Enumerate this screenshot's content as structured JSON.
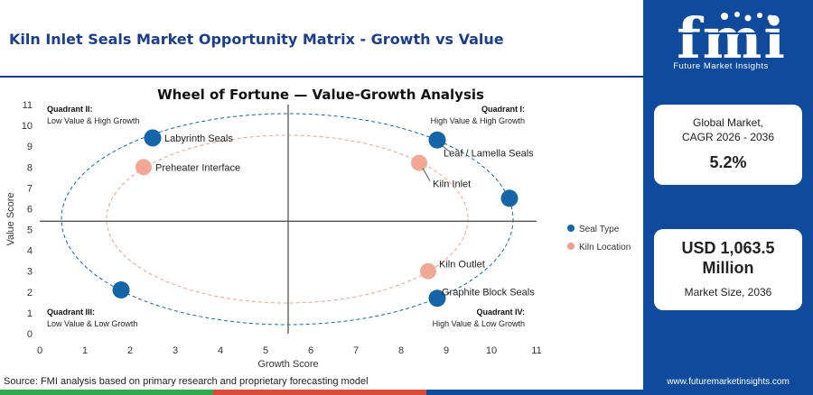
{
  "header": {
    "title": "Kiln Inlet Seals Market Opportunity Matrix - Growth vs Value"
  },
  "brand": {
    "logo_text": "fmi",
    "logo_subtitle": "Future Market Insights",
    "website": "www.futuremarketinsights.com"
  },
  "cagr_card": {
    "label_line1": "Global Market,",
    "label_line2": "CAGR 2026 - 2036",
    "value": "5.2%"
  },
  "size_card": {
    "value_line1": "USD 1,063.5",
    "value_line2": "Million",
    "label": "Market Size, 2036"
  },
  "source": "Source: FMI analysis based on primary research and proprietary forecasting model",
  "colors": {
    "brand_blue": "#0f4a9c",
    "seal_type": "#1565a8",
    "kiln_location": "#f0a08a",
    "bar_green": "#2eaa4a",
    "bar_red": "#d94a3a"
  },
  "chart_data": {
    "type": "scatter",
    "title": "Wheel of Fortune — Value-Growth Analysis",
    "xlabel": "Growth Score",
    "ylabel": "Value Score",
    "xlim": [
      0,
      11
    ],
    "ylim": [
      0,
      11
    ],
    "xticks": [
      "0",
      "1",
      "2",
      "3",
      "4",
      "5",
      "6",
      "7",
      "8",
      "9",
      "10",
      "11"
    ],
    "yticks": [
      "0",
      "1",
      "2",
      "3",
      "4",
      "5",
      "6",
      "7",
      "8",
      "9",
      "10",
      "11"
    ],
    "divider_x": 5.5,
    "divider_y": 5.4,
    "legend_position": "right",
    "quadrants": [
      {
        "title": "Quadrant II:",
        "subtitle": "Low Value & High Growth",
        "position": "top-left"
      },
      {
        "title": "Quadrant I:",
        "subtitle": "High Value & High Growth",
        "position": "top-right"
      },
      {
        "title": "Quadrant III:",
        "subtitle": "Low Value & Low Growth",
        "position": "bottom-left"
      },
      {
        "title": "Quadrant IV:",
        "subtitle": "High Value & Low Growth",
        "position": "bottom-right"
      }
    ],
    "series": [
      {
        "name": "Seal Type",
        "color": "#1565a8",
        "points": [
          {
            "label": "Labyrinth Seals",
            "x": 2.5,
            "y": 9.4
          },
          {
            "label": "Leaf / Lamella Seals",
            "x": 8.8,
            "y": 9.3
          },
          {
            "label": "",
            "x": 10.4,
            "y": 6.5
          },
          {
            "label": "",
            "x": 1.8,
            "y": 2.1
          },
          {
            "label": "Graphite Block Seals",
            "x": 8.8,
            "y": 1.7
          }
        ]
      },
      {
        "name": "Kiln Location",
        "color": "#f0a08a",
        "points": [
          {
            "label": "Preheater Interface",
            "x": 2.3,
            "y": 8.0
          },
          {
            "label": "Kiln Inlet",
            "x": 8.4,
            "y": 8.2
          },
          {
            "label": "Kiln Outlet",
            "x": 8.6,
            "y": 3.0
          }
        ]
      }
    ]
  }
}
